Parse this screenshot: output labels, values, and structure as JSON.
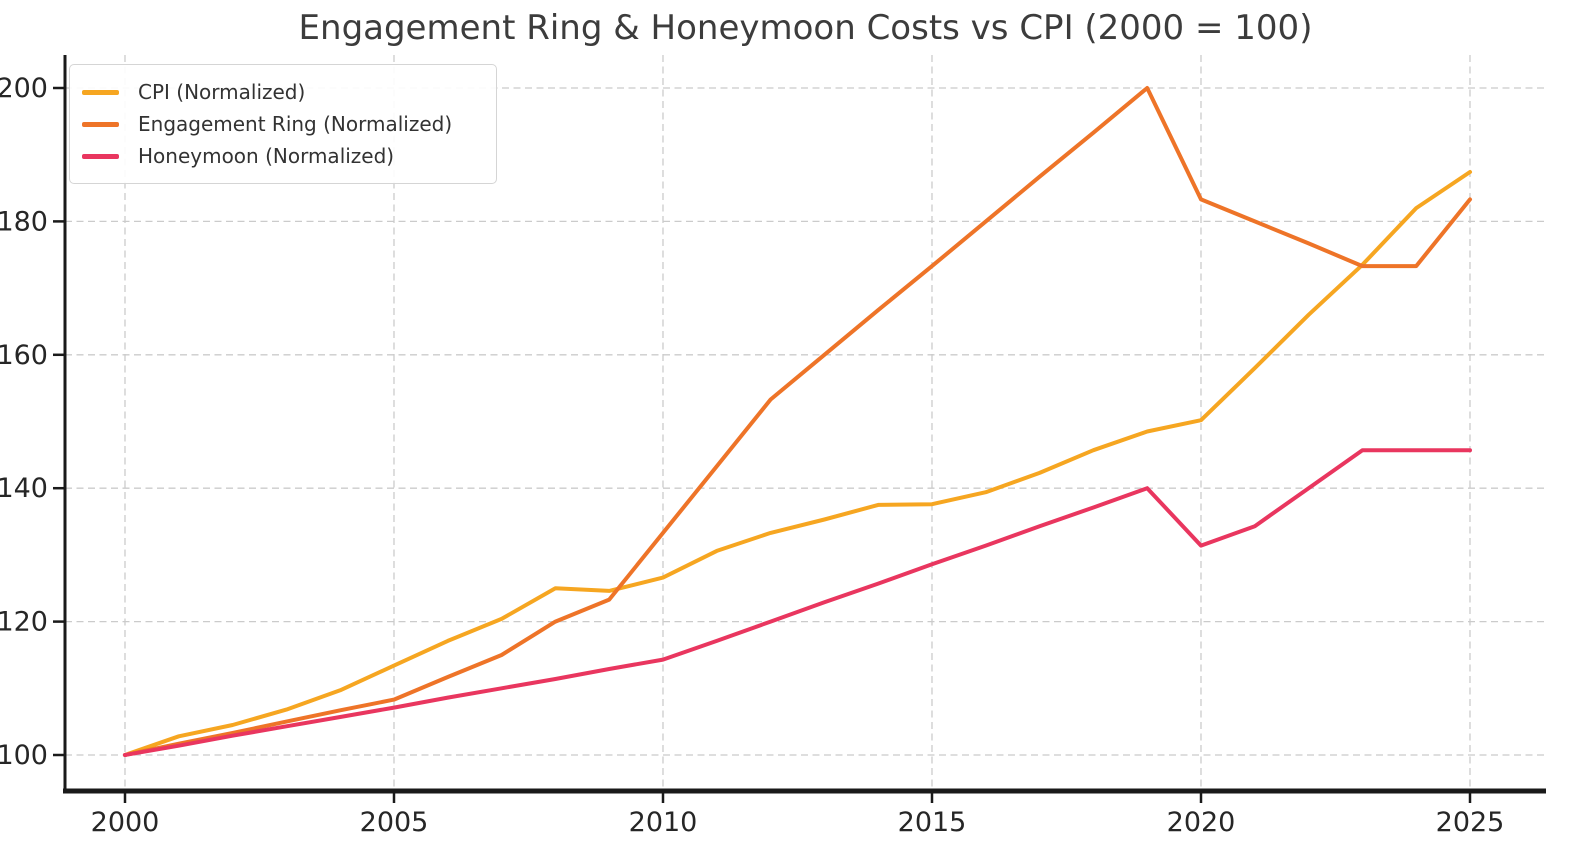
{
  "page": {
    "background": "#ffffff",
    "grid_color": "#cbcbcb",
    "axis_color": "#1a1a1a",
    "tick_label_color": "#262626",
    "title_color": "#3c3c3c"
  },
  "chart_data": {
    "type": "line",
    "title": "Engagement Ring & Honeymoon Costs vs CPI (2000 = 100)",
    "xlabel": "",
    "ylabel": "",
    "grid": true,
    "grid_style": "dashed",
    "legend_position": "upper left",
    "xlim": [
      1998.9,
      2026.4
    ],
    "ylim": [
      95,
      205
    ],
    "x_ticks": [
      2000,
      2005,
      2010,
      2015,
      2020,
      2025
    ],
    "y_ticks": [
      100,
      120,
      140,
      160,
      180,
      200
    ],
    "x": [
      2000,
      2001,
      2002,
      2003,
      2004,
      2005,
      2006,
      2007,
      2008,
      2009,
      2010,
      2011,
      2012,
      2013,
      2014,
      2015,
      2016,
      2017,
      2018,
      2019,
      2020,
      2021,
      2022,
      2023,
      2024,
      2025
    ],
    "series": [
      {
        "name": "CPI (Normalized)",
        "color": "#F6A621",
        "values": [
          100.0,
          102.8,
          104.5,
          106.8,
          109.7,
          113.4,
          117.1,
          120.4,
          125.0,
          124.6,
          126.6,
          130.6,
          133.3,
          135.3,
          137.5,
          137.6,
          139.4,
          142.3,
          145.7,
          148.5,
          150.2,
          158.0,
          166.0,
          173.5,
          182.0,
          187.4
        ]
      },
      {
        "name": "Engagement Ring (Normalized)",
        "color": "#EE7428",
        "values": [
          100.0,
          101.7,
          103.3,
          105.0,
          106.7,
          108.3,
          111.7,
          115.0,
          120.0,
          123.3,
          133.3,
          143.3,
          153.3,
          160.0,
          166.7,
          173.3,
          180.0,
          186.7,
          193.3,
          200.0,
          183.3,
          180.0,
          176.7,
          173.3,
          173.3,
          183.3
        ]
      },
      {
        "name": "Honeymoon (Normalized)",
        "color": "#E9365F",
        "values": [
          100.0,
          101.4,
          102.9,
          104.3,
          105.7,
          107.1,
          108.6,
          110.0,
          111.4,
          112.9,
          114.3,
          117.1,
          120.0,
          122.9,
          125.7,
          128.6,
          131.4,
          134.3,
          137.1,
          140.0,
          131.4,
          134.3,
          140.0,
          145.7,
          145.7,
          145.7
        ]
      }
    ]
  }
}
